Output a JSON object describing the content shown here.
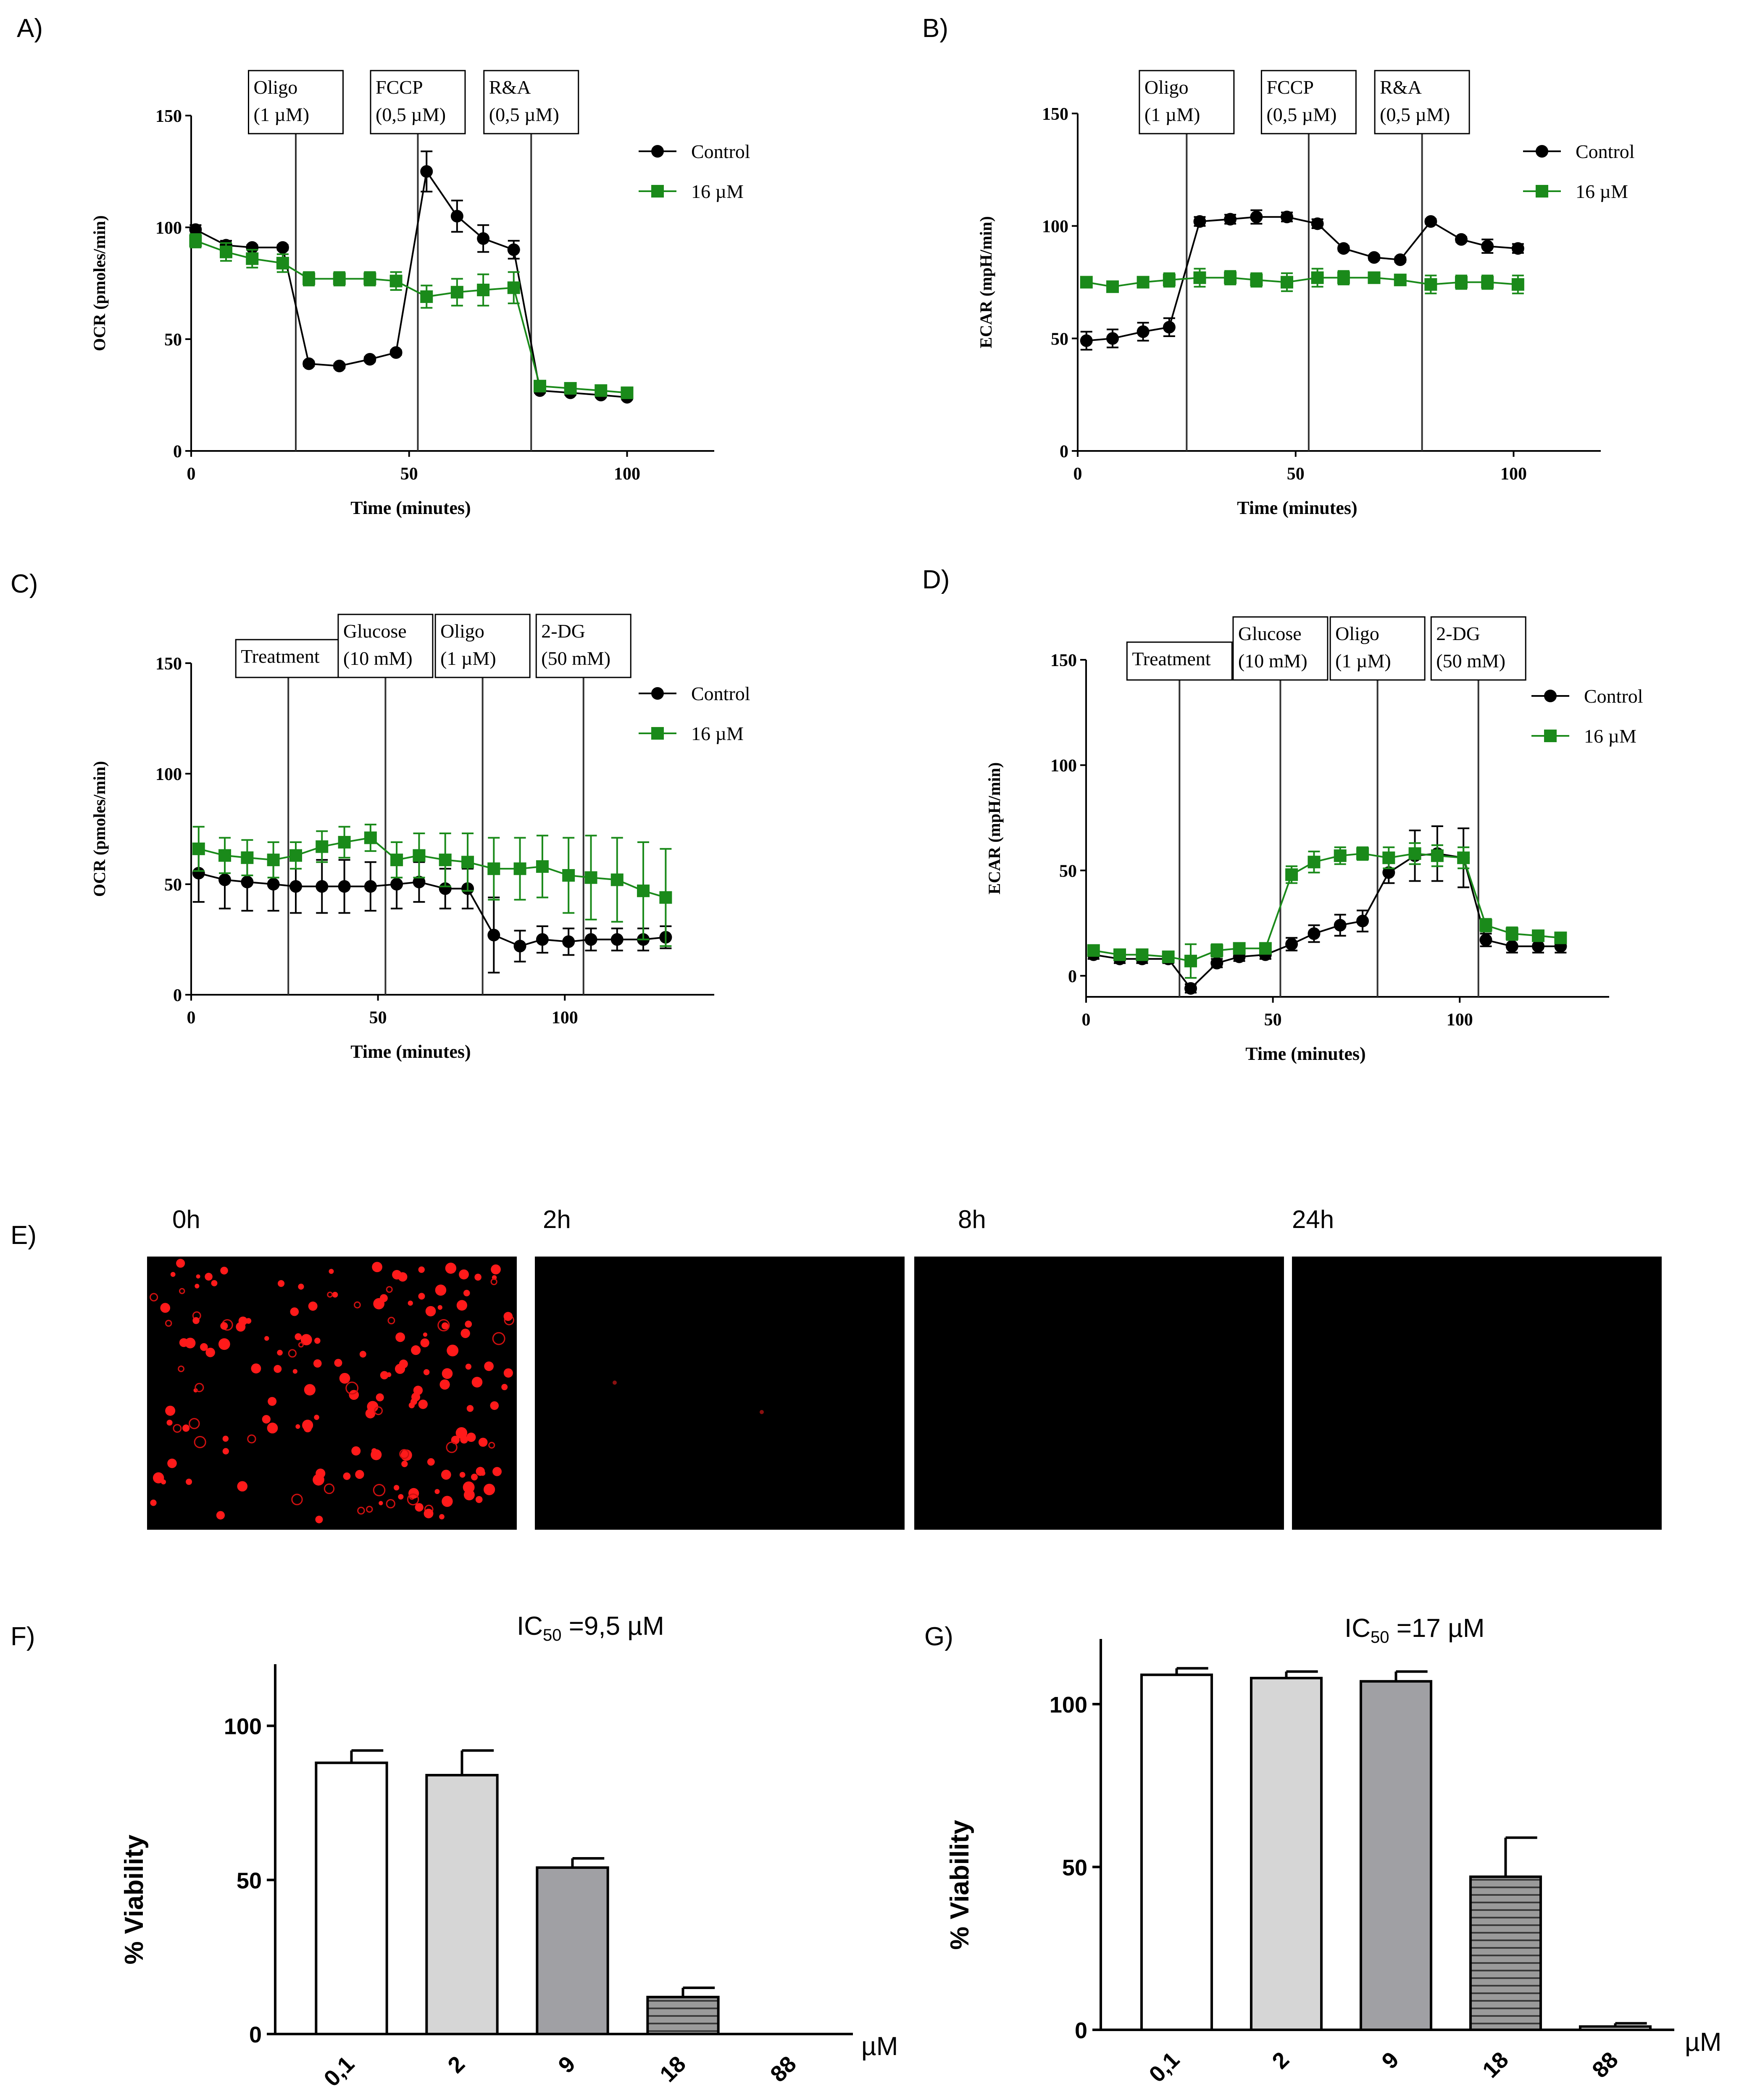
{
  "panel_labels": [
    "A)",
    "B)",
    "C)",
    "D)",
    "E)",
    "F)",
    "G)"
  ],
  "colors": {
    "control": "#000000",
    "treated": "#1a8a1a",
    "axis": "#000000"
  },
  "chart_data": [
    {
      "id": "A",
      "type": "line",
      "xlabel": "Time (minutes)",
      "ylabel": "OCR (pmoles/min)",
      "xlim": [
        0,
        120
      ],
      "ylim": [
        0,
        150
      ],
      "xticks": [
        0,
        50,
        100
      ],
      "yticks": [
        0,
        50,
        100,
        150
      ],
      "injections": [
        {
          "x": 24,
          "label": [
            "Oligo",
            "(1 µM)"
          ]
        },
        {
          "x": 52,
          "label": [
            "FCCP",
            "(0,5 µM)"
          ]
        },
        {
          "x": 78,
          "label": [
            "R&A",
            "(0,5 µM)"
          ]
        }
      ],
      "series": [
        {
          "name": "Control",
          "marker": "circle",
          "x": [
            1,
            8,
            14,
            21,
            27,
            34,
            41,
            47,
            54,
            61,
            67,
            74,
            80,
            87,
            94,
            100
          ],
          "y": [
            99,
            92,
            91,
            91,
            39,
            38,
            41,
            44,
            125,
            105,
            95,
            90,
            27,
            26,
            25,
            24
          ],
          "err": [
            2,
            2,
            1,
            1,
            1,
            1,
            1,
            1,
            9,
            7,
            6,
            4,
            1,
            1,
            1,
            1
          ]
        },
        {
          "name": "16 µM",
          "marker": "square",
          "x": [
            1,
            8,
            14,
            21,
            27,
            34,
            41,
            47,
            54,
            61,
            67,
            74,
            80,
            87,
            94,
            100
          ],
          "y": [
            94,
            89,
            86,
            84,
            77,
            77,
            77,
            76,
            69,
            71,
            72,
            73,
            29,
            28,
            27,
            26
          ],
          "err": [
            3,
            4,
            4,
            4,
            3,
            3,
            3,
            4,
            5,
            6,
            7,
            7,
            2,
            2,
            2,
            2
          ]
        }
      ]
    },
    {
      "id": "B",
      "type": "line",
      "xlabel": "Time (minutes)",
      "ylabel": "ECAR (mpH/min)",
      "xlim": [
        0,
        120
      ],
      "ylim": [
        0,
        150
      ],
      "xticks": [
        0,
        50,
        100
      ],
      "yticks": [
        0,
        50,
        100,
        150
      ],
      "injections": [
        {
          "x": 25,
          "label": [
            "Oligo",
            "(1 µM)"
          ]
        },
        {
          "x": 53,
          "label": [
            "FCCP",
            "(0,5 µM)"
          ]
        },
        {
          "x": 79,
          "label": [
            "R&A",
            "(0,5 µM)"
          ]
        }
      ],
      "series": [
        {
          "name": "Control",
          "marker": "circle",
          "x": [
            2,
            8,
            15,
            21,
            28,
            35,
            41,
            48,
            55,
            61,
            68,
            74,
            81,
            88,
            94,
            101
          ],
          "y": [
            49,
            50,
            53,
            55,
            102,
            103,
            104,
            104,
            101,
            90,
            86,
            85,
            102,
            94,
            91,
            90
          ],
          "err": [
            4,
            4,
            4,
            4,
            2,
            2,
            3,
            2,
            2,
            1,
            1,
            1,
            1,
            1,
            3,
            2
          ]
        },
        {
          "name": "16 µM",
          "marker": "square",
          "x": [
            2,
            8,
            15,
            21,
            28,
            35,
            41,
            48,
            55,
            61,
            68,
            74,
            81,
            88,
            94,
            101
          ],
          "y": [
            75,
            73,
            75,
            76,
            77,
            77,
            76,
            75,
            77,
            77,
            77,
            76,
            74,
            75,
            75,
            74
          ],
          "err": [
            2,
            2,
            2,
            3,
            4,
            3,
            3,
            4,
            4,
            3,
            2,
            2,
            4,
            3,
            3,
            4
          ]
        }
      ]
    },
    {
      "id": "C",
      "type": "line",
      "xlabel": "Time (minutes)",
      "ylabel": "OCR (pmoles/min)",
      "xlim": [
        0,
        140
      ],
      "ylim": [
        0,
        150
      ],
      "xticks": [
        0,
        50,
        100
      ],
      "yticks": [
        0,
        50,
        100,
        150
      ],
      "injections": [
        {
          "x": 26,
          "label": [
            "Treatment"
          ]
        },
        {
          "x": 52,
          "label": [
            "Glucose",
            "(10 mM)"
          ]
        },
        {
          "x": 78,
          "label": [
            "Oligo",
            "(1 µM)"
          ]
        },
        {
          "x": 105,
          "label": [
            "2-DG",
            "(50 mM)"
          ]
        }
      ],
      "series": [
        {
          "name": "Control",
          "marker": "circle",
          "x": [
            2,
            9,
            15,
            22,
            28,
            35,
            41,
            48,
            55,
            61,
            68,
            74,
            81,
            88,
            94,
            101,
            107,
            114,
            121,
            127
          ],
          "y": [
            55,
            52,
            51,
            50,
            49,
            49,
            49,
            49,
            50,
            51,
            48,
            48,
            27,
            22,
            25,
            24,
            25,
            25,
            25,
            26
          ],
          "err": [
            13,
            13,
            13,
            12,
            12,
            12,
            12,
            11,
            11,
            9,
            9,
            9,
            17,
            7,
            6,
            6,
            5,
            5,
            5,
            5
          ]
        },
        {
          "name": "16 µM",
          "marker": "square",
          "x": [
            2,
            9,
            15,
            22,
            28,
            35,
            41,
            48,
            55,
            61,
            68,
            74,
            81,
            88,
            94,
            101,
            107,
            114,
            121,
            127
          ],
          "y": [
            66,
            63,
            62,
            61,
            63,
            67,
            69,
            71,
            61,
            63,
            61,
            60,
            57,
            57,
            58,
            54,
            53,
            52,
            47,
            44
          ],
          "err": [
            10,
            8,
            8,
            8,
            6,
            7,
            7,
            6,
            8,
            10,
            12,
            13,
            14,
            14,
            14,
            17,
            19,
            19,
            22,
            22
          ]
        }
      ]
    },
    {
      "id": "D",
      "type": "line",
      "xlabel": "Time (minutes)",
      "ylabel": "ECAR (mpH/min)",
      "xlim": [
        0,
        140
      ],
      "ylim": [
        -10,
        150
      ],
      "xticks": [
        0,
        50,
        100
      ],
      "yticks": [
        0,
        50,
        100,
        150
      ],
      "injections": [
        {
          "x": 25,
          "label": [
            "Treatment"
          ]
        },
        {
          "x": 52,
          "label": [
            "Glucose",
            "(10 mM)"
          ]
        },
        {
          "x": 78,
          "label": [
            "Oligo",
            "(1 µM)"
          ]
        },
        {
          "x": 105,
          "label": [
            "2-DG",
            "(50 mM)"
          ]
        }
      ],
      "series": [
        {
          "name": "Control",
          "marker": "circle",
          "x": [
            2,
            9,
            15,
            22,
            28,
            35,
            41,
            48,
            55,
            61,
            68,
            74,
            81,
            88,
            94,
            101,
            107,
            114,
            121,
            127
          ],
          "y": [
            10,
            8,
            8,
            8,
            -6,
            6,
            9,
            10,
            15,
            20,
            24,
            26,
            49,
            57,
            58,
            56,
            17,
            14,
            14,
            14
          ],
          "err": [
            2,
            2,
            2,
            2,
            2,
            2,
            2,
            2,
            3,
            4,
            5,
            5,
            5,
            12,
            13,
            14,
            3,
            3,
            3,
            3
          ]
        },
        {
          "name": "16 µM",
          "marker": "square",
          "x": [
            2,
            9,
            15,
            22,
            28,
            35,
            41,
            48,
            55,
            61,
            68,
            74,
            81,
            88,
            94,
            101,
            107,
            114,
            121,
            127
          ],
          "y": [
            12,
            10,
            10,
            9,
            7,
            12,
            13,
            13,
            48,
            54,
            57,
            58,
            56,
            58,
            57,
            56,
            24,
            20,
            19,
            18
          ],
          "err": [
            2,
            2,
            2,
            2,
            8,
            3,
            2,
            2,
            4,
            5,
            4,
            3,
            5,
            5,
            5,
            5,
            3,
            3,
            2,
            2
          ]
        }
      ]
    },
    {
      "id": "F",
      "type": "bar",
      "title_prefix": "IC",
      "title_sub": "50",
      "title_suffix": " =9,5 µM",
      "ylabel": "% Viability",
      "unit_label": "µM",
      "categories": [
        "0,1",
        "2",
        "9",
        "18",
        "88"
      ],
      "values": [
        88,
        84,
        54,
        12,
        0
      ],
      "err": [
        4,
        8,
        3,
        3,
        0
      ],
      "ylim": [
        0,
        120
      ],
      "yticks": [
        0,
        50,
        100
      ]
    },
    {
      "id": "G",
      "type": "bar",
      "title_prefix": "IC",
      "title_sub": "50",
      "title_suffix": " =17 µM",
      "ylabel": "% Viability",
      "unit_label": "µM",
      "categories": [
        "0,1",
        "2",
        "9",
        "18",
        "88"
      ],
      "values": [
        109,
        108,
        107,
        47,
        1
      ],
      "err": [
        2,
        2,
        3,
        12,
        1
      ],
      "ylim": [
        0,
        120
      ],
      "yticks": [
        0,
        50,
        100
      ]
    }
  ],
  "legend": {
    "control": "Control",
    "treated": "16 µM"
  },
  "micrographs": {
    "time_labels": [
      "0h",
      "2h",
      "8h",
      "24h"
    ],
    "cell_counts": [
      180,
      2,
      0,
      0
    ]
  }
}
